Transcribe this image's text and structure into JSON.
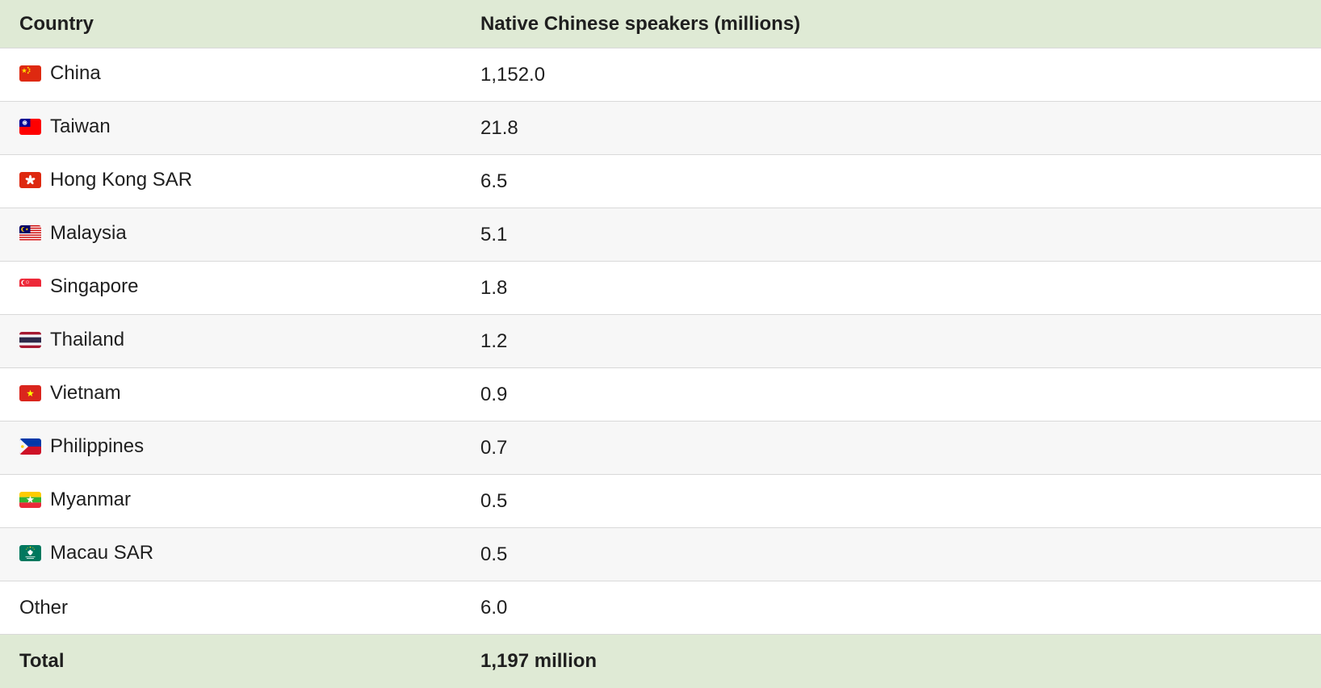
{
  "colors": {
    "header_bg": "#dfead5",
    "alt_row_bg": "#f7f7f7",
    "border": "#d9d9d9",
    "text": "#1f1f1f"
  },
  "chart_data": {
    "type": "table",
    "columns": [
      "Country",
      "Native Chinese speakers (millions)"
    ],
    "rows": [
      {
        "country": "China",
        "value": "1,152.0",
        "flag": "china"
      },
      {
        "country": "Taiwan",
        "value": "21.8",
        "flag": "taiwan"
      },
      {
        "country": "Hong Kong SAR",
        "value": "6.5",
        "flag": "hong-kong"
      },
      {
        "country": "Malaysia",
        "value": "5.1",
        "flag": "malaysia"
      },
      {
        "country": "Singapore",
        "value": "1.8",
        "flag": "singapore"
      },
      {
        "country": "Thailand",
        "value": "1.2",
        "flag": "thailand"
      },
      {
        "country": "Vietnam",
        "value": "0.9",
        "flag": "vietnam"
      },
      {
        "country": "Philippines",
        "value": "0.7",
        "flag": "philippines"
      },
      {
        "country": "Myanmar",
        "value": "0.5",
        "flag": "myanmar"
      },
      {
        "country": "Macau SAR",
        "value": "0.5",
        "flag": "macau"
      },
      {
        "country": "Other",
        "value": "6.0",
        "flag": null
      }
    ],
    "total_row": {
      "label": "Total",
      "value": "1,197 million"
    }
  }
}
